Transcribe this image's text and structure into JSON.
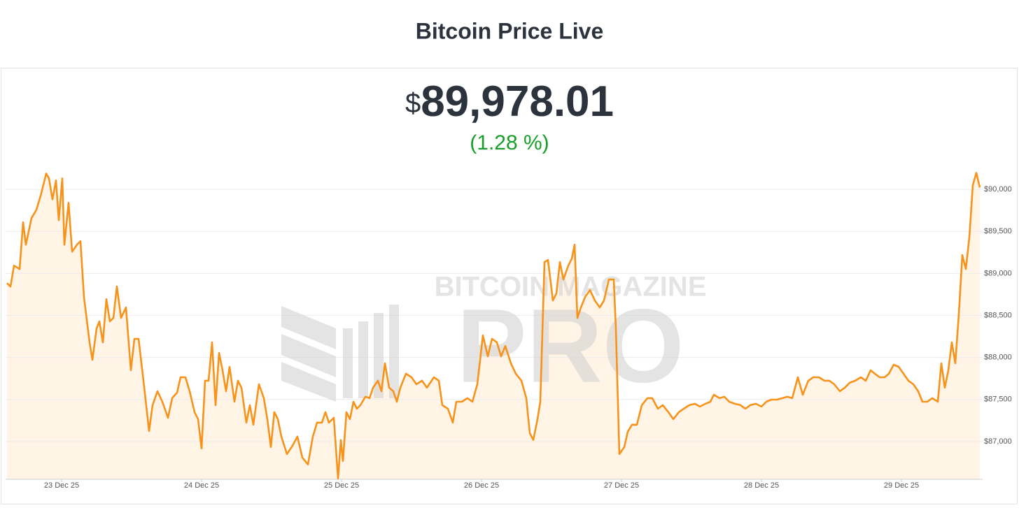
{
  "header": {
    "title": "Bitcoin Price Live"
  },
  "price": {
    "currency": "$",
    "amount": "89,978.01",
    "change": "(1.28 %)"
  },
  "watermark": {
    "top": "BITCOIN MAGAZINE",
    "bottom": "PRO"
  },
  "chart_data": {
    "type": "line",
    "color": "#f7931a",
    "area_color": "#fff4e6",
    "grid": true,
    "xlim": [
      22.6,
      29.58
    ],
    "ylim": [
      86550,
      90350
    ],
    "xticks": [
      {
        "value": 23,
        "label": "23 Dec 25"
      },
      {
        "value": 24,
        "label": "24 Dec 25"
      },
      {
        "value": 25,
        "label": "25 Dec 25"
      },
      {
        "value": 26,
        "label": "26 Dec 25"
      },
      {
        "value": 27,
        "label": "27 Dec 25"
      },
      {
        "value": 28,
        "label": "28 Dec 25"
      },
      {
        "value": 29,
        "label": "29 Dec 25"
      }
    ],
    "yticks": [
      {
        "value": 87000,
        "label": "$87,000"
      },
      {
        "value": 87500,
        "label": "$87,500"
      },
      {
        "value": 88000,
        "label": "$88,000"
      },
      {
        "value": 88500,
        "label": "$88,500"
      },
      {
        "value": 89000,
        "label": "$89,000"
      },
      {
        "value": 89500,
        "label": "$89,500"
      },
      {
        "value": 90000,
        "label": "$90,000"
      }
    ],
    "x": [
      22.61,
      22.635,
      22.66,
      22.7,
      22.725,
      22.745,
      22.785,
      22.82,
      22.85,
      22.89,
      22.91,
      22.935,
      22.96,
      22.98,
      23.005,
      23.02,
      23.05,
      23.075,
      23.11,
      23.135,
      23.16,
      23.2,
      23.22,
      23.25,
      23.27,
      23.295,
      23.32,
      23.345,
      23.37,
      23.395,
      23.425,
      23.46,
      23.495,
      23.52,
      23.55,
      23.585,
      23.625,
      23.65,
      23.685,
      23.72,
      23.76,
      23.79,
      23.825,
      23.85,
      23.885,
      23.915,
      23.95,
      23.975,
      24.0,
      24.025,
      24.05,
      24.075,
      24.1,
      24.125,
      24.15,
      24.175,
      24.2,
      24.235,
      24.26,
      24.285,
      24.32,
      24.345,
      24.37,
      24.41,
      24.445,
      24.47,
      24.495,
      24.52,
      24.545,
      24.57,
      24.61,
      24.65,
      24.685,
      24.72,
      24.76,
      24.795,
      24.825,
      24.86,
      24.885,
      24.91,
      24.945,
      24.975,
      24.995,
      25.01,
      25.035,
      25.06,
      25.085,
      25.11,
      25.135,
      25.17,
      25.2,
      25.225,
      25.26,
      25.285,
      25.31,
      25.34,
      25.37,
      25.395,
      25.42,
      25.46,
      25.5,
      25.535,
      25.575,
      25.61,
      25.66,
      25.695,
      25.72,
      25.76,
      25.795,
      25.82,
      25.86,
      25.9,
      25.935,
      25.97,
      26.01,
      26.045,
      26.075,
      26.11,
      26.14,
      26.17,
      26.21,
      26.245,
      26.285,
      26.32,
      26.345,
      26.37,
      26.4,
      26.42,
      26.45,
      26.475,
      26.51,
      26.535,
      26.56,
      26.585,
      26.62,
      26.645,
      26.665,
      26.685,
      26.71,
      26.74,
      26.775,
      26.81,
      26.845,
      26.875,
      26.91,
      26.945,
      26.96,
      26.985,
      27.02,
      27.045,
      27.075,
      27.11,
      27.145,
      27.185,
      27.22,
      27.26,
      27.295,
      27.335,
      27.37,
      27.41,
      27.445,
      27.485,
      27.525,
      27.56,
      27.6,
      27.635,
      27.66,
      27.7,
      27.735,
      27.77,
      27.81,
      27.85,
      27.885,
      27.92,
      27.96,
      28.0,
      28.035,
      28.07,
      28.11,
      28.15,
      28.185,
      28.22,
      28.26,
      28.295,
      28.335,
      28.37,
      28.41,
      28.45,
      28.485,
      28.52,
      28.56,
      28.595,
      28.63,
      28.67,
      28.71,
      28.745,
      28.78,
      28.81,
      28.845,
      28.88,
      28.91,
      28.945,
      28.98,
      29.015,
      29.05,
      29.085,
      29.12,
      29.15,
      29.185,
      29.22,
      29.26,
      29.285,
      29.31,
      29.335,
      29.36,
      29.385,
      29.41,
      29.435,
      29.46,
      29.485,
      29.51,
      29.535,
      29.56
    ],
    "values": [
      88885,
      88843,
      89093,
      89052,
      89608,
      89342,
      89658,
      89757,
      89923,
      90189,
      90131,
      89882,
      90106,
      89633,
      90131,
      89342,
      89840,
      89259,
      89342,
      89384,
      88719,
      88179,
      87972,
      88345,
      88429,
      88179,
      88694,
      88429,
      88470,
      88844,
      88470,
      88595,
      87847,
      88221,
      88221,
      87723,
      87125,
      87432,
      87598,
      87473,
      87282,
      87515,
      87581,
      87764,
      87764,
      87598,
      87349,
      87266,
      86917,
      87723,
      87723,
      88179,
      87432,
      88055,
      87847,
      87598,
      87889,
      87473,
      87723,
      87640,
      87224,
      87432,
      87199,
      87681,
      87515,
      87266,
      86934,
      87349,
      87266,
      87058,
      86850,
      86950,
      87058,
      86809,
      86726,
      87058,
      87224,
      87224,
      87349,
      87224,
      87282,
      86560,
      87017,
      86767,
      87349,
      87266,
      87473,
      87390,
      87432,
      87532,
      87515,
      87640,
      87723,
      87598,
      87930,
      87640,
      87598,
      87473,
      87640,
      87806,
      87764,
      87681,
      87723,
      87640,
      87764,
      87723,
      87432,
      87390,
      87224,
      87473,
      87473,
      87515,
      87473,
      87681,
      88262,
      88013,
      88221,
      88179,
      88013,
      88137,
      87930,
      87806,
      87723,
      87515,
      87100,
      87017,
      87266,
      87473,
      89135,
      89160,
      88678,
      88761,
      89135,
      88927,
      89093,
      89176,
      89342,
      88470,
      88595,
      88719,
      88802,
      88678,
      88595,
      88678,
      88927,
      88927,
      88345,
      86850,
      86934,
      87116,
      87199,
      87199,
      87432,
      87515,
      87515,
      87390,
      87432,
      87349,
      87266,
      87349,
      87390,
      87432,
      87449,
      87415,
      87449,
      87473,
      87556,
      87515,
      87532,
      87473,
      87449,
      87432,
      87390,
      87432,
      87449,
      87415,
      87473,
      87498,
      87498,
      87515,
      87532,
      87515,
      87764,
      87556,
      87723,
      87764,
      87764,
      87723,
      87723,
      87681,
      87598,
      87640,
      87698,
      87723,
      87764,
      87723,
      87847,
      87806,
      87764,
      87764,
      87806,
      87914,
      87889,
      87806,
      87723,
      87681,
      87598,
      87473,
      87473,
      87515,
      87473,
      87930,
      87640,
      87847,
      88179,
      87930,
      88512,
      89218,
      89052,
      89425,
      90048,
      90197,
      90023
    ]
  }
}
